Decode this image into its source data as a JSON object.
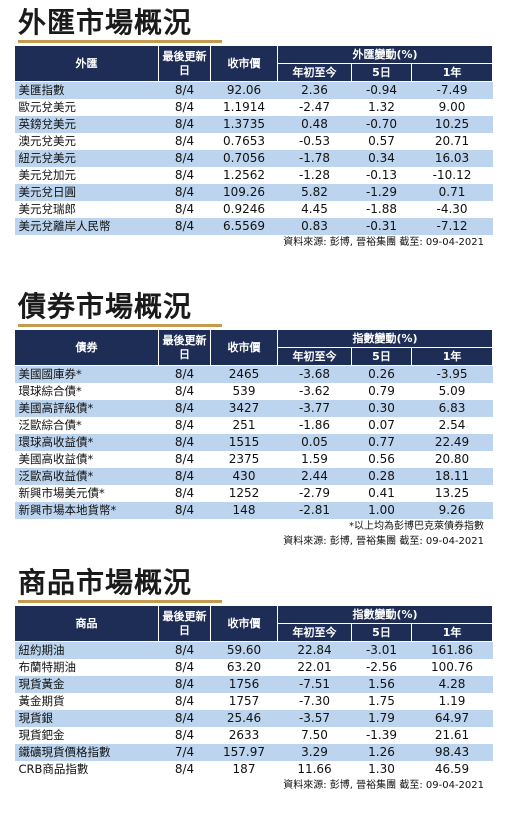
{
  "headers": {
    "latest_update": "最後更新日",
    "close_price": "收市價",
    "ytd": "年初至今",
    "five_day": "5日",
    "one_year": "1年"
  },
  "fx": {
    "title": "外匯市場概況",
    "name_header": "外匯",
    "change_header": "外匯變動(%)",
    "source": "資料來源: 彭博, 晉裕集團 截至: 09-04-2021",
    "rows": [
      {
        "name": "美匯指數",
        "date": "8/4",
        "price": "92.06",
        "ytd": "2.36",
        "d5": "-0.94",
        "y1": "-7.49"
      },
      {
        "name": "歐元兌美元",
        "date": "8/4",
        "price": "1.1914",
        "ytd": "-2.47",
        "d5": "1.32",
        "y1": "9.00"
      },
      {
        "name": "英鎊兌美元",
        "date": "8/4",
        "price": "1.3735",
        "ytd": "0.48",
        "d5": "-0.70",
        "y1": "10.25"
      },
      {
        "name": "澳元兌美元",
        "date": "8/4",
        "price": "0.7653",
        "ytd": "-0.53",
        "d5": "0.57",
        "y1": "20.71"
      },
      {
        "name": "紐元兌美元",
        "date": "8/4",
        "price": "0.7056",
        "ytd": "-1.78",
        "d5": "0.34",
        "y1": "16.03"
      },
      {
        "name": "美元兌加元",
        "date": "8/4",
        "price": "1.2562",
        "ytd": "-1.28",
        "d5": "-0.13",
        "y1": "-10.12"
      },
      {
        "name": "美元兌日圓",
        "date": "8/4",
        "price": "109.26",
        "ytd": "5.82",
        "d5": "-1.29",
        "y1": "0.71"
      },
      {
        "name": "美元兌瑞郎",
        "date": "8/4",
        "price": "0.9246",
        "ytd": "4.45",
        "d5": "-1.88",
        "y1": "-4.30"
      },
      {
        "name": "美元兌離岸人民幣",
        "date": "8/4",
        "price": "6.5569",
        "ytd": "0.83",
        "d5": "-0.31",
        "y1": "-7.12"
      }
    ]
  },
  "bond": {
    "title": "債券市場概況",
    "name_header": "債券",
    "change_header": "指數變動(%)",
    "note": "*以上均為彭博巴克萊債券指數",
    "source": "資料來源: 彭博, 晉裕集團 截至: 09-04-2021",
    "rows": [
      {
        "name": "美國國庫券*",
        "date": "8/4",
        "price": "2465",
        "ytd": "-3.68",
        "d5": "0.26",
        "y1": "-3.95"
      },
      {
        "name": "環球綜合債*",
        "date": "8/4",
        "price": "539",
        "ytd": "-3.62",
        "d5": "0.79",
        "y1": "5.09"
      },
      {
        "name": "美國高評級債*",
        "date": "8/4",
        "price": "3427",
        "ytd": "-3.77",
        "d5": "0.30",
        "y1": "6.83"
      },
      {
        "name": "泛歐綜合債*",
        "date": "8/4",
        "price": "251",
        "ytd": "-1.86",
        "d5": "0.07",
        "y1": "2.54"
      },
      {
        "name": "環球高收益債*",
        "date": "8/4",
        "price": "1515",
        "ytd": "0.05",
        "d5": "0.77",
        "y1": "22.49"
      },
      {
        "name": "美國高收益債*",
        "date": "8/4",
        "price": "2375",
        "ytd": "1.59",
        "d5": "0.56",
        "y1": "20.80"
      },
      {
        "name": "泛歐高收益債*",
        "date": "8/4",
        "price": "430",
        "ytd": "2.44",
        "d5": "0.28",
        "y1": "18.11"
      },
      {
        "name": "新興市場美元債*",
        "date": "8/4",
        "price": "1252",
        "ytd": "-2.79",
        "d5": "0.41",
        "y1": "13.25"
      },
      {
        "name": "新興市場本地貨幣*",
        "date": "8/4",
        "price": "148",
        "ytd": "-2.81",
        "d5": "1.00",
        "y1": "9.26"
      }
    ]
  },
  "commodity": {
    "title": "商品市場概況",
    "name_header": "商品",
    "change_header": "指數變動(%)",
    "source": "資料來源: 彭博, 晉裕集團 截至: 09-04-2021",
    "rows": [
      {
        "name": "紐約期油",
        "date": "8/4",
        "price": "59.60",
        "ytd": "22.84",
        "d5": "-3.01",
        "y1": "161.86"
      },
      {
        "name": "布蘭特期油",
        "date": "8/4",
        "price": "63.20",
        "ytd": "22.01",
        "d5": "-2.56",
        "y1": "100.76"
      },
      {
        "name": "現貨黃金",
        "date": "8/4",
        "price": "1756",
        "ytd": "-7.51",
        "d5": "1.56",
        "y1": "4.28"
      },
      {
        "name": "黃金期貨",
        "date": "8/4",
        "price": "1757",
        "ytd": "-7.30",
        "d5": "1.75",
        "y1": "1.19"
      },
      {
        "name": "現貨銀",
        "date": "8/4",
        "price": "25.46",
        "ytd": "-3.57",
        "d5": "1.79",
        "y1": "64.97"
      },
      {
        "name": "現貨鈀金",
        "date": "8/4",
        "price": "2633",
        "ytd": "7.50",
        "d5": "-1.39",
        "y1": "21.61"
      },
      {
        "name": "鐵礦現貨價格指數",
        "date": "7/4",
        "price": "157.97",
        "ytd": "3.29",
        "d5": "1.26",
        "y1": "98.43"
      },
      {
        "name": "CRB商品指數",
        "date": "8/4",
        "price": "187",
        "ytd": "11.66",
        "d5": "1.30",
        "y1": "46.59"
      }
    ]
  }
}
